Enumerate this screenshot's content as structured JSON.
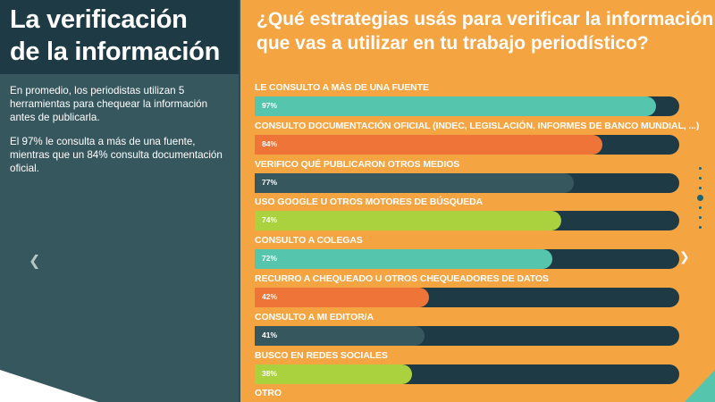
{
  "left": {
    "title_line1": "La verificación",
    "title_line2": "de la información",
    "paragraph1": "En promedio, los periodistas utilizan 5 herramientas para chequear la información antes de publicarla.",
    "paragraph2": "El 97% le consulta a más de una fuente, mientras que un 84% consulta documentación oficial.",
    "prev_icon": "chevron-left-icon"
  },
  "right": {
    "question_line1": "¿Qué estrategias usás para verificar la información",
    "question_line2": "que vas a utilizar en tu trabajo periodístico?",
    "next_icon": "chevron-right-icon",
    "pagination": {
      "total": 7,
      "active": 4
    }
  },
  "colors": {
    "track": "#1e3a45",
    "background": "#f5a442",
    "teal": "#55c5ad",
    "orange": "#ef7438",
    "slate": "#37575f",
    "lime": "#a9d23e"
  },
  "chart_data": {
    "type": "bar",
    "orientation": "horizontal",
    "xlim": [
      0,
      100
    ],
    "categories": [
      "LE CONSULTO A MÁS DE UNA FUENTE",
      "CONSULTO DOCUMENTACIÓN OFICIAL (INDEC, LEGISLACIÓN, INFORMES DE BANCO MUNDIAL, ...)",
      "VERIFICO QUÉ PUBLICARON OTROS MEDIOS",
      "USO GOOGLE U OTROS MOTORES DE BÚSQUEDA",
      "CONSULTO A COLEGAS",
      "RECURRO A CHEQUEADO U OTROS CHEQUEADORES DE DATOS",
      "CONSULTO A MI EDITOR/A",
      "BUSCO EN REDES SOCIALES",
      "OTRO"
    ],
    "values": [
      97,
      84,
      77,
      74,
      72,
      42,
      41,
      38,
      null
    ],
    "value_labels": [
      "97%",
      "84%",
      "77%",
      "74%",
      "72%",
      "42%",
      "41%",
      "38%",
      ""
    ],
    "bar_colors": [
      "#55c5ad",
      "#ef7438",
      "#37575f",
      "#a9d23e",
      "#55c5ad",
      "#ef7438",
      "#37575f",
      "#a9d23e",
      ""
    ]
  }
}
